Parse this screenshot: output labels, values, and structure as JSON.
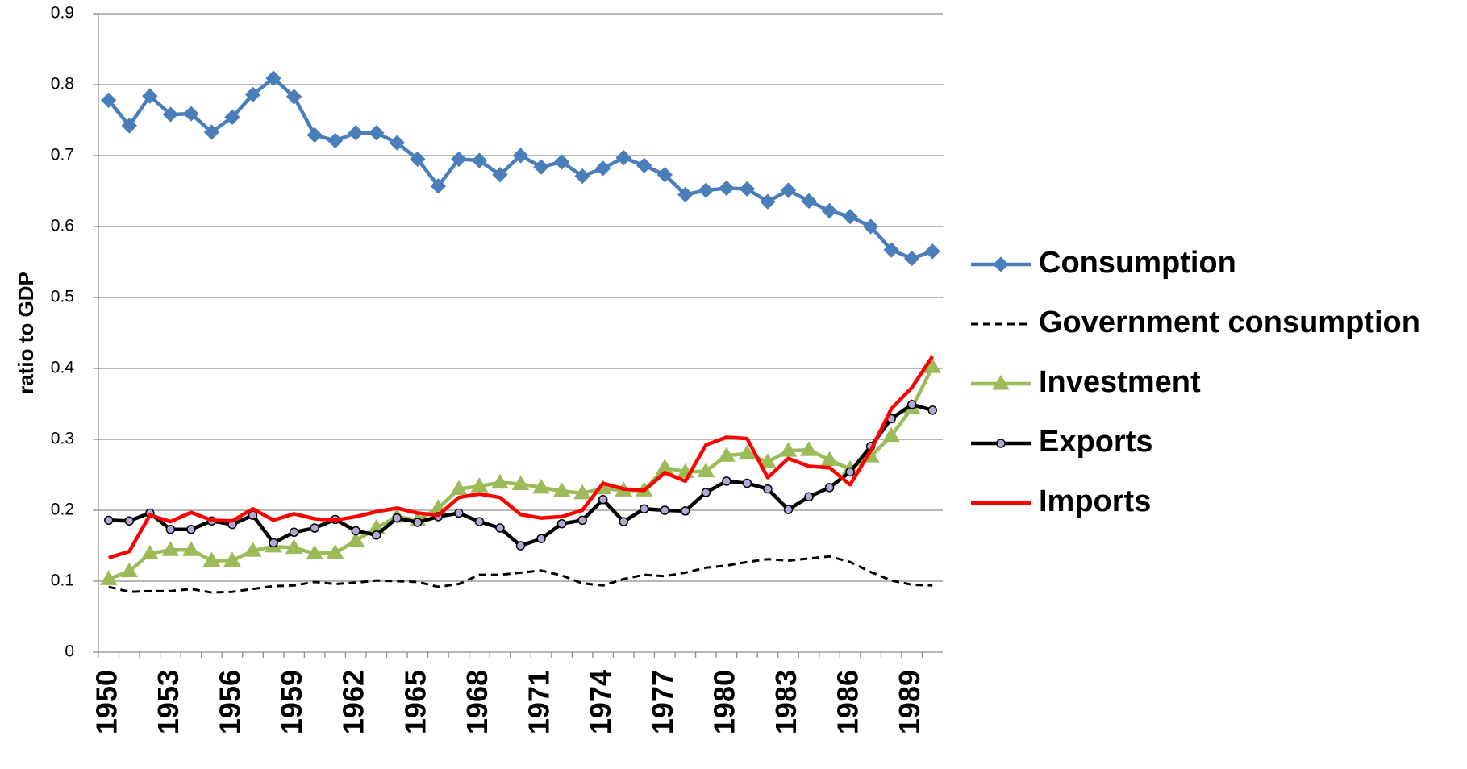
{
  "chart_data": {
    "type": "line",
    "y_label": "ratio to GDP",
    "categories": [
      "1950",
      null,
      null,
      "1953",
      null,
      null,
      "1956",
      null,
      null,
      "1959",
      null,
      null,
      "1962",
      null,
      null,
      "1965",
      null,
      null,
      "1968",
      null,
      null,
      "1971",
      null,
      null,
      "1974",
      null,
      null,
      "1977",
      null,
      null,
      "1980",
      null,
      null,
      "1983",
      null,
      null,
      "1986",
      null,
      null,
      "1989",
      null
    ],
    "ylim": [
      0,
      0.9
    ],
    "yticks": [
      0,
      0.1,
      0.2,
      0.3,
      0.4,
      0.5,
      0.6,
      0.7,
      0.8,
      0.9
    ],
    "grid": true,
    "legend": "right",
    "series": [
      {
        "name": "Consumption",
        "color": "#4a7ebb",
        "marker": "diamond",
        "values": [
          0.778,
          0.742,
          0.784,
          0.758,
          0.759,
          0.733,
          0.754,
          0.786,
          0.809,
          0.783,
          0.729,
          0.721,
          0.732,
          0.732,
          0.718,
          0.695,
          0.657,
          0.695,
          0.693,
          0.673,
          0.7,
          0.684,
          0.691,
          0.671,
          0.682,
          0.697,
          0.686,
          0.673,
          0.645,
          0.651,
          0.654,
          0.653,
          0.635,
          0.651,
          0.636,
          0.622,
          0.614,
          0.6,
          0.567,
          0.555,
          0.565
        ]
      },
      {
        "name": "Government consumption",
        "color": "#000000",
        "dash": true,
        "values": [
          0.092,
          0.085,
          0.086,
          0.086,
          0.089,
          0.084,
          0.085,
          0.089,
          0.093,
          0.094,
          0.099,
          0.096,
          0.098,
          0.101,
          0.1,
          0.099,
          0.092,
          0.096,
          0.109,
          0.109,
          0.112,
          0.115,
          0.108,
          0.097,
          0.094,
          0.103,
          0.109,
          0.107,
          0.112,
          0.119,
          0.122,
          0.127,
          0.131,
          0.129,
          0.132,
          0.135,
          0.127,
          0.113,
          0.101,
          0.095,
          0.094
        ]
      },
      {
        "name": "Investment",
        "color": "#9bbb59",
        "marker": "triangle",
        "values": [
          0.103,
          0.114,
          0.139,
          0.144,
          0.144,
          0.129,
          0.129,
          0.143,
          0.149,
          0.147,
          0.139,
          0.14,
          0.157,
          0.175,
          0.191,
          0.186,
          0.203,
          0.23,
          0.234,
          0.239,
          0.237,
          0.232,
          0.227,
          0.224,
          0.231,
          0.228,
          0.228,
          0.26,
          0.254,
          0.255,
          0.277,
          0.28,
          0.268,
          0.284,
          0.285,
          0.271,
          0.258,
          0.276,
          0.305,
          0.344,
          0.402
        ]
      },
      {
        "name": "Exports",
        "color": "#000000",
        "marker": "circle",
        "values": [
          0.186,
          0.185,
          0.196,
          0.173,
          0.173,
          0.185,
          0.18,
          0.193,
          0.154,
          0.169,
          0.175,
          0.187,
          0.171,
          0.165,
          0.189,
          0.183,
          0.191,
          0.196,
          0.184,
          0.175,
          0.15,
          0.16,
          0.181,
          0.186,
          0.215,
          0.184,
          0.202,
          0.2,
          0.199,
          0.225,
          0.241,
          0.238,
          0.23,
          0.201,
          0.219,
          0.232,
          0.254,
          0.29,
          0.329,
          0.349,
          0.341
        ]
      },
      {
        "name": "Imports",
        "color": "#ff0000",
        "values": [
          0.133,
          0.142,
          0.193,
          0.184,
          0.197,
          0.186,
          0.185,
          0.202,
          0.186,
          0.195,
          0.188,
          0.186,
          0.191,
          0.198,
          0.203,
          0.196,
          0.193,
          0.218,
          0.223,
          0.218,
          0.194,
          0.189,
          0.191,
          0.2,
          0.238,
          0.23,
          0.228,
          0.253,
          0.241,
          0.292,
          0.303,
          0.301,
          0.246,
          0.273,
          0.262,
          0.26,
          0.236,
          0.284,
          0.343,
          0.373,
          0.417
        ]
      }
    ]
  }
}
